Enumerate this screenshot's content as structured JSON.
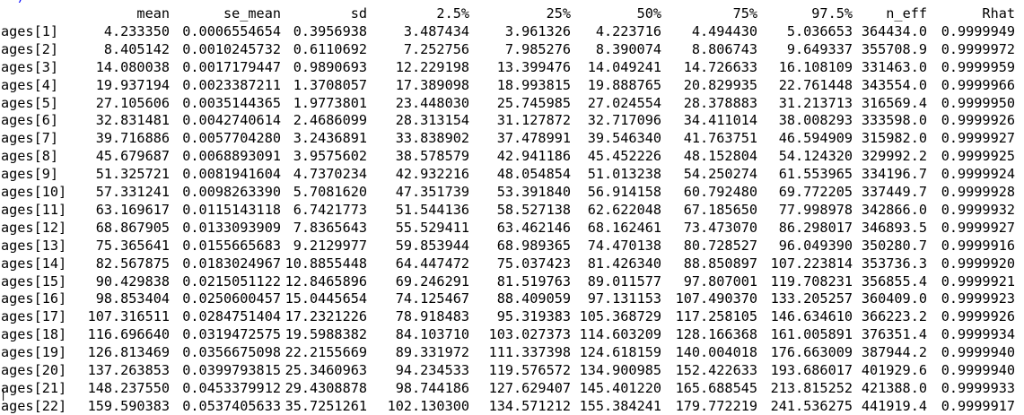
{
  "console": {
    "previous_line_fragment": "  )                                  \"                \"                   ",
    "prompt_cursor": "|"
  },
  "table": {
    "columns": [
      "mean",
      "se_mean",
      "sd",
      "2.5%",
      "25%",
      "50%",
      "75%",
      "97.5%",
      "n_eff",
      "Rhat"
    ],
    "rows": [
      {
        "name": "ages[1]",
        "values": [
          "4.233350",
          "0.0006554654",
          "0.3956938",
          "3.487434",
          "3.961326",
          "4.223716",
          "4.494430",
          "5.036653",
          "364434.0",
          "0.9999949"
        ]
      },
      {
        "name": "ages[2]",
        "values": [
          "8.405142",
          "0.0010245732",
          "0.6110692",
          "7.252756",
          "7.985276",
          "8.390074",
          "8.806743",
          "9.649337",
          "355708.9",
          "0.9999972"
        ]
      },
      {
        "name": "ages[3]",
        "values": [
          "14.080038",
          "0.0017179447",
          "0.9890693",
          "12.229198",
          "13.399476",
          "14.049241",
          "14.726633",
          "16.108109",
          "331463.0",
          "0.9999959"
        ]
      },
      {
        "name": "ages[4]",
        "values": [
          "19.937194",
          "0.0023387211",
          "1.3708057",
          "17.389098",
          "18.993815",
          "19.888765",
          "20.829935",
          "22.761448",
          "343554.0",
          "0.9999966"
        ]
      },
      {
        "name": "ages[5]",
        "values": [
          "27.105606",
          "0.0035144365",
          "1.9773801",
          "23.448030",
          "25.745985",
          "27.024554",
          "28.378883",
          "31.213713",
          "316569.4",
          "0.9999950"
        ]
      },
      {
        "name": "ages[6]",
        "values": [
          "32.831481",
          "0.0042740614",
          "2.4686099",
          "28.313154",
          "31.127872",
          "32.717096",
          "34.411014",
          "38.008293",
          "333598.0",
          "0.9999926"
        ]
      },
      {
        "name": "ages[7]",
        "values": [
          "39.716886",
          "0.0057704280",
          "3.2436891",
          "33.838902",
          "37.478991",
          "39.546340",
          "41.763751",
          "46.594909",
          "315982.0",
          "0.9999927"
        ]
      },
      {
        "name": "ages[8]",
        "values": [
          "45.679687",
          "0.0068893091",
          "3.9575602",
          "38.578579",
          "42.941186",
          "45.452226",
          "48.152804",
          "54.124320",
          "329992.2",
          "0.9999925"
        ]
      },
      {
        "name": "ages[9]",
        "values": [
          "51.325721",
          "0.0081941604",
          "4.7370234",
          "42.932216",
          "48.054854",
          "51.013238",
          "54.250274",
          "61.553965",
          "334196.7",
          "0.9999924"
        ]
      },
      {
        "name": "ages[10]",
        "values": [
          "57.331241",
          "0.0098263390",
          "5.7081620",
          "47.351739",
          "53.391840",
          "56.914158",
          "60.792480",
          "69.772205",
          "337449.7",
          "0.9999928"
        ]
      },
      {
        "name": "ages[11]",
        "values": [
          "63.169617",
          "0.0115143118",
          "6.7421773",
          "51.544136",
          "58.527138",
          "62.622048",
          "67.185650",
          "77.998978",
          "342866.0",
          "0.9999932"
        ]
      },
      {
        "name": "ages[12]",
        "values": [
          "68.867905",
          "0.0133093909",
          "7.8365643",
          "55.529411",
          "63.462146",
          "68.162461",
          "73.473070",
          "86.298017",
          "346893.5",
          "0.9999927"
        ]
      },
      {
        "name": "ages[13]",
        "values": [
          "75.365641",
          "0.0155665683",
          "9.2129977",
          "59.853944",
          "68.989365",
          "74.470138",
          "80.728527",
          "96.049390",
          "350280.7",
          "0.9999916"
        ]
      },
      {
        "name": "ages[14]",
        "values": [
          "82.567875",
          "0.0183024967",
          "10.8855448",
          "64.447472",
          "75.037423",
          "81.426340",
          "88.850897",
          "107.223814",
          "353736.3",
          "0.9999920"
        ]
      },
      {
        "name": "ages[15]",
        "values": [
          "90.429838",
          "0.0215051122",
          "12.8465896",
          "69.246291",
          "81.519763",
          "89.011577",
          "97.807001",
          "119.708231",
          "356855.4",
          "0.9999921"
        ]
      },
      {
        "name": "ages[16]",
        "values": [
          "98.853404",
          "0.0250600457",
          "15.0445654",
          "74.125467",
          "88.409059",
          "97.131153",
          "107.490370",
          "133.205257",
          "360409.0",
          "0.9999923"
        ]
      },
      {
        "name": "ages[17]",
        "values": [
          "107.316511",
          "0.0284751404",
          "17.2321226",
          "78.918483",
          "95.319383",
          "105.368729",
          "117.258105",
          "146.634610",
          "366223.2",
          "0.9999926"
        ]
      },
      {
        "name": "ages[18]",
        "values": [
          "116.696640",
          "0.0319472575",
          "19.5988382",
          "84.103710",
          "103.027373",
          "114.603209",
          "128.166368",
          "161.005891",
          "376351.4",
          "0.9999934"
        ]
      },
      {
        "name": "ages[19]",
        "values": [
          "126.813469",
          "0.0356675098",
          "22.2155669",
          "89.331972",
          "111.337398",
          "124.618159",
          "140.004018",
          "176.663009",
          "387944.2",
          "0.9999940"
        ]
      },
      {
        "name": "ages[20]",
        "values": [
          "137.263853",
          "0.0399793815",
          "25.3460963",
          "94.234533",
          "119.576572",
          "134.900985",
          "152.422633",
          "193.686017",
          "401929.6",
          "0.9999940"
        ]
      },
      {
        "name": "ages[21]",
        "values": [
          "148.237550",
          "0.0453379912",
          "29.4308878",
          "98.744186",
          "127.629407",
          "145.401220",
          "165.688545",
          "213.815252",
          "421388.0",
          "0.9999933"
        ]
      },
      {
        "name": "ages[22]",
        "values": [
          "159.590383",
          "0.0537405633",
          "35.7251261",
          "102.130300",
          "134.571212",
          "155.384241",
          "179.772219",
          "241.536275",
          "441919.4",
          "0.9999917"
        ]
      }
    ]
  },
  "colors": {
    "background": "#ffffff",
    "text": "#000000",
    "input_echo": "#0000ff"
  }
}
